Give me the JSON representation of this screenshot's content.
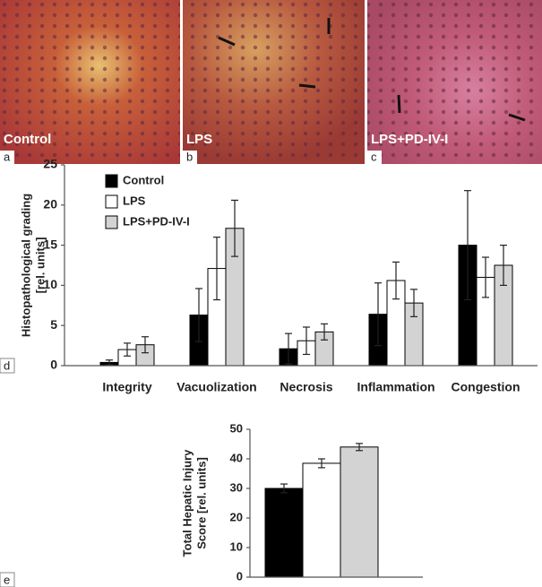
{
  "panels": [
    {
      "letter": "a",
      "caption": "Control"
    },
    {
      "letter": "b",
      "caption": "LPS"
    },
    {
      "letter": "c",
      "caption": "LPS+PD-IV-I"
    },
    {
      "letter": "d"
    },
    {
      "letter": "e"
    }
  ],
  "chart_data": [
    {
      "type": "bar",
      "ylabel": [
        "Histopathological grading",
        "[rel. units]"
      ],
      "categories": [
        "Integrity",
        "Vacuolization",
        "Necrosis",
        "Inflammation",
        "Congestion"
      ],
      "series": [
        {
          "name": "Control",
          "color": "#000000",
          "values": [
            0.4,
            6.3,
            2.1,
            6.4,
            15.0
          ],
          "errors": [
            0.3,
            3.3,
            1.9,
            3.9,
            6.8
          ]
        },
        {
          "name": "LPS",
          "color": "#ffffff",
          "values": [
            2.0,
            12.1,
            3.1,
            10.6,
            11.0
          ],
          "errors": [
            0.8,
            3.9,
            1.7,
            2.3,
            2.5
          ]
        },
        {
          "name": "LPS+PD-IV-I",
          "color": "#d3d3d3",
          "values": [
            2.6,
            17.1,
            4.2,
            7.8,
            12.5
          ],
          "errors": [
            1.0,
            3.5,
            1.0,
            1.7,
            2.5
          ]
        }
      ],
      "ylim": [
        0,
        25
      ],
      "yticks": [
        0,
        5,
        10,
        15,
        20,
        25
      ],
      "legend": "top-left"
    },
    {
      "type": "bar",
      "ylabel": [
        "Total Hepatic Injury",
        "Score [rel. units]"
      ],
      "categories": [
        null,
        null,
        null
      ],
      "values": [
        30,
        38.5,
        44
      ],
      "errors": [
        1.5,
        1.5,
        1.2
      ],
      "colors": [
        "#000000",
        "#ffffff",
        "#d3d3d3"
      ],
      "ylim": [
        0,
        50
      ],
      "yticks": [
        0,
        10,
        20,
        30,
        40,
        50
      ]
    }
  ]
}
